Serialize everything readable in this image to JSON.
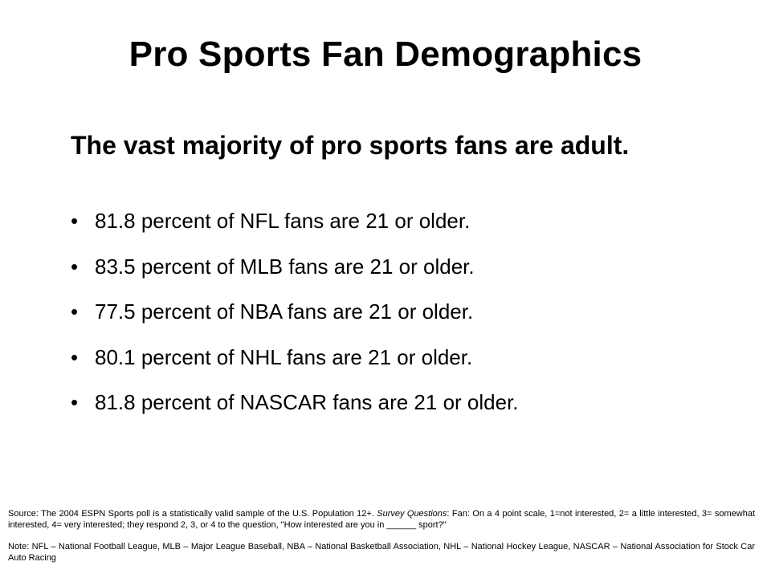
{
  "title": "Pro Sports Fan Demographics",
  "subhead": "The vast majority of pro sports fans are adult.",
  "bullets": [
    "81.8 percent of NFL fans are 21 or older.",
    "83.5 percent of MLB fans are 21 or older.",
    "77.5 percent of NBA fans are 21 or older.",
    "80.1 percent of NHL fans are 21 or older.",
    "81.8 percent of NASCAR fans are 21 or older."
  ],
  "bullet_glyph": "•",
  "source": {
    "lead": "Source: The 2004 ESPN Sports poll is a statistically valid sample of the U.S. Population 12+. ",
    "italic": "Survey Questions",
    "rest": ": Fan: On a 4 point scale, 1=not interested, 2= a little interested, 3= somewhat interested, 4= very interested; they respond 2, 3, or 4 to the question, \"How interested are you in ______ sport?\""
  },
  "note": "Note: NFL – National Football League, MLB – Major League Baseball, NBA – National Basketball Association, NHL – National Hockey League, NASCAR – National Association for Stock Car Auto Racing"
}
